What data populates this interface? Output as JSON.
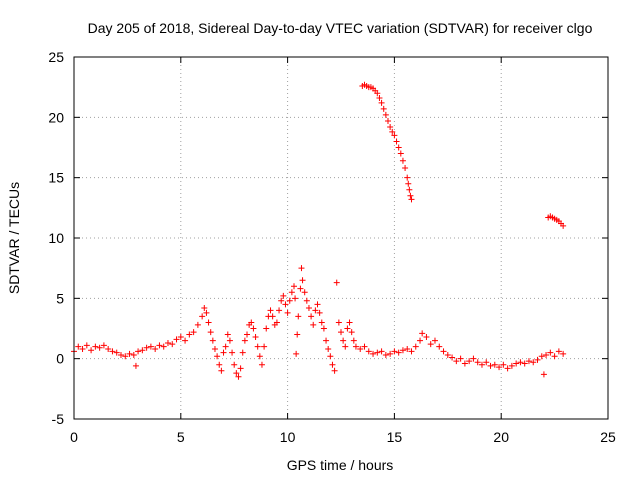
{
  "chart_data": {
    "type": "scatter",
    "title": "Day 205 of 2018, Sidereal Day-to-day VTEC variation (SDTVAR) for receiver clgo",
    "xlabel": "GPS time / hours",
    "ylabel": "SDTVAR / TECUs",
    "xlim": [
      0,
      25
    ],
    "ylim": [
      -5,
      25
    ],
    "xticks": [
      "0",
      "5",
      "10",
      "15",
      "20",
      "25"
    ],
    "yticks": [
      "-5",
      "0",
      "5",
      "10",
      "15",
      "20",
      "25"
    ],
    "grid": true,
    "marker": "plus",
    "color": "#ff0000",
    "series": [
      {
        "name": "main",
        "points": [
          [
            0.0,
            0.6
          ],
          [
            0.2,
            1.0
          ],
          [
            0.4,
            0.8
          ],
          [
            0.6,
            1.1
          ],
          [
            0.8,
            0.7
          ],
          [
            1.0,
            1.0
          ],
          [
            1.2,
            0.9
          ],
          [
            1.4,
            1.1
          ],
          [
            1.6,
            0.8
          ],
          [
            1.8,
            0.6
          ],
          [
            2.0,
            0.5
          ],
          [
            2.2,
            0.3
          ],
          [
            2.4,
            0.2
          ],
          [
            2.6,
            0.4
          ],
          [
            2.8,
            0.3
          ],
          [
            2.9,
            -0.6
          ],
          [
            3.0,
            0.6
          ],
          [
            3.2,
            0.7
          ],
          [
            3.4,
            0.9
          ],
          [
            3.6,
            1.0
          ],
          [
            3.8,
            0.8
          ],
          [
            4.0,
            1.1
          ],
          [
            4.2,
            1.0
          ],
          [
            4.4,
            1.3
          ],
          [
            4.6,
            1.2
          ],
          [
            4.8,
            1.6
          ],
          [
            5.0,
            1.8
          ],
          [
            5.2,
            1.5
          ],
          [
            5.4,
            2.0
          ],
          [
            5.6,
            2.2
          ],
          [
            5.8,
            2.8
          ],
          [
            6.0,
            3.5
          ],
          [
            6.1,
            4.2
          ],
          [
            6.2,
            3.8
          ],
          [
            6.3,
            3.0
          ],
          [
            6.4,
            2.2
          ],
          [
            6.5,
            1.5
          ],
          [
            6.6,
            0.8
          ],
          [
            6.7,
            0.2
          ],
          [
            6.8,
            -0.5
          ],
          [
            6.9,
            -1.0
          ],
          [
            7.0,
            0.5
          ],
          [
            7.1,
            1.0
          ],
          [
            7.2,
            2.0
          ],
          [
            7.3,
            1.5
          ],
          [
            7.4,
            0.5
          ],
          [
            7.5,
            -0.5
          ],
          [
            7.6,
            -1.2
          ],
          [
            7.7,
            -1.5
          ],
          [
            7.8,
            -0.8
          ],
          [
            7.9,
            0.5
          ],
          [
            8.0,
            1.5
          ],
          [
            8.1,
            2.0
          ],
          [
            8.2,
            2.8
          ],
          [
            8.3,
            3.0
          ],
          [
            8.4,
            2.5
          ],
          [
            8.5,
            1.8
          ],
          [
            8.6,
            1.0
          ],
          [
            8.7,
            0.2
          ],
          [
            8.8,
            -0.5
          ],
          [
            8.9,
            1.0
          ],
          [
            9.0,
            2.5
          ],
          [
            9.1,
            3.5
          ],
          [
            9.2,
            4.0
          ],
          [
            9.3,
            3.5
          ],
          [
            9.4,
            2.8
          ],
          [
            9.5,
            3.0
          ],
          [
            9.6,
            4.0
          ],
          [
            9.7,
            4.8
          ],
          [
            9.8,
            5.2
          ],
          [
            9.9,
            4.5
          ],
          [
            10.0,
            3.8
          ],
          [
            10.1,
            4.8
          ],
          [
            10.2,
            5.5
          ],
          [
            10.3,
            6.0
          ],
          [
            10.35,
            5.0
          ],
          [
            10.4,
            0.4
          ],
          [
            10.45,
            2.0
          ],
          [
            10.5,
            3.5
          ],
          [
            10.6,
            5.8
          ],
          [
            10.65,
            7.5
          ],
          [
            10.7,
            6.5
          ],
          [
            10.8,
            5.5
          ],
          [
            10.9,
            4.8
          ],
          [
            11.0,
            4.2
          ],
          [
            11.1,
            3.5
          ],
          [
            11.2,
            2.8
          ],
          [
            11.3,
            4.0
          ],
          [
            11.4,
            4.5
          ],
          [
            11.5,
            3.8
          ],
          [
            11.6,
            3.0
          ],
          [
            11.7,
            2.5
          ],
          [
            11.8,
            1.5
          ],
          [
            11.9,
            0.8
          ],
          [
            12.0,
            0.2
          ],
          [
            12.1,
            -0.5
          ],
          [
            12.2,
            -1.0
          ],
          [
            12.3,
            6.3
          ],
          [
            12.4,
            3.0
          ],
          [
            12.5,
            2.2
          ],
          [
            12.6,
            1.5
          ],
          [
            12.7,
            1.0
          ],
          [
            12.8,
            2.5
          ],
          [
            12.9,
            3.0
          ],
          [
            13.0,
            2.2
          ],
          [
            13.1,
            1.5
          ],
          [
            13.2,
            1.0
          ],
          [
            13.4,
            0.8
          ],
          [
            13.6,
            1.0
          ],
          [
            13.8,
            0.6
          ],
          [
            14.0,
            0.4
          ],
          [
            14.2,
            0.5
          ],
          [
            14.4,
            0.6
          ],
          [
            14.6,
            0.3
          ],
          [
            14.8,
            0.4
          ],
          [
            15.0,
            0.6
          ],
          [
            15.2,
            0.5
          ],
          [
            15.4,
            0.7
          ],
          [
            15.6,
            0.8
          ],
          [
            15.8,
            0.6
          ],
          [
            16.0,
            1.0
          ],
          [
            16.2,
            1.5
          ],
          [
            16.3,
            2.1
          ],
          [
            16.5,
            1.8
          ],
          [
            16.7,
            1.2
          ],
          [
            16.9,
            1.5
          ],
          [
            17.1,
            1.0
          ],
          [
            17.3,
            0.6
          ],
          [
            17.5,
            0.3
          ],
          [
            17.7,
            0.1
          ],
          [
            17.9,
            -0.2
          ],
          [
            18.1,
            0.0
          ],
          [
            18.3,
            -0.4
          ],
          [
            18.5,
            -0.2
          ],
          [
            18.7,
            0.0
          ],
          [
            18.9,
            -0.3
          ],
          [
            19.1,
            -0.5
          ],
          [
            19.3,
            -0.3
          ],
          [
            19.5,
            -0.6
          ],
          [
            19.7,
            -0.5
          ],
          [
            19.9,
            -0.7
          ],
          [
            20.1,
            -0.5
          ],
          [
            20.3,
            -0.8
          ],
          [
            20.5,
            -0.6
          ],
          [
            20.7,
            -0.4
          ],
          [
            20.9,
            -0.3
          ],
          [
            21.1,
            -0.4
          ],
          [
            21.3,
            -0.2
          ],
          [
            21.5,
            -0.3
          ],
          [
            21.7,
            -0.1
          ],
          [
            21.9,
            0.2
          ],
          [
            22.0,
            -1.3
          ],
          [
            22.1,
            0.3
          ],
          [
            22.3,
            0.5
          ],
          [
            22.5,
            0.2
          ],
          [
            22.7,
            0.6
          ],
          [
            22.9,
            0.4
          ]
        ]
      },
      {
        "name": "high arc",
        "points": [
          [
            13.5,
            22.6
          ],
          [
            13.6,
            22.7
          ],
          [
            13.7,
            22.6
          ],
          [
            13.8,
            22.5
          ],
          [
            13.9,
            22.5
          ],
          [
            14.0,
            22.4
          ],
          [
            14.1,
            22.2
          ],
          [
            14.2,
            22.0
          ],
          [
            14.3,
            21.6
          ],
          [
            14.4,
            21.2
          ],
          [
            14.5,
            20.7
          ],
          [
            14.6,
            20.2
          ],
          [
            14.7,
            19.7
          ],
          [
            14.8,
            19.2
          ],
          [
            14.9,
            18.8
          ],
          [
            15.0,
            18.5
          ],
          [
            15.1,
            18.0
          ],
          [
            15.2,
            17.5
          ],
          [
            15.3,
            17.0
          ],
          [
            15.4,
            16.4
          ],
          [
            15.5,
            15.8
          ],
          [
            15.6,
            15.0
          ],
          [
            15.65,
            14.5
          ],
          [
            15.7,
            14.0
          ],
          [
            15.75,
            13.5
          ],
          [
            15.8,
            13.2
          ]
        ]
      },
      {
        "name": "late arc",
        "points": [
          [
            22.2,
            11.7
          ],
          [
            22.3,
            11.8
          ],
          [
            22.4,
            11.7
          ],
          [
            22.5,
            11.6
          ],
          [
            22.6,
            11.5
          ],
          [
            22.7,
            11.4
          ],
          [
            22.8,
            11.2
          ],
          [
            22.9,
            11.0
          ]
        ]
      }
    ]
  }
}
